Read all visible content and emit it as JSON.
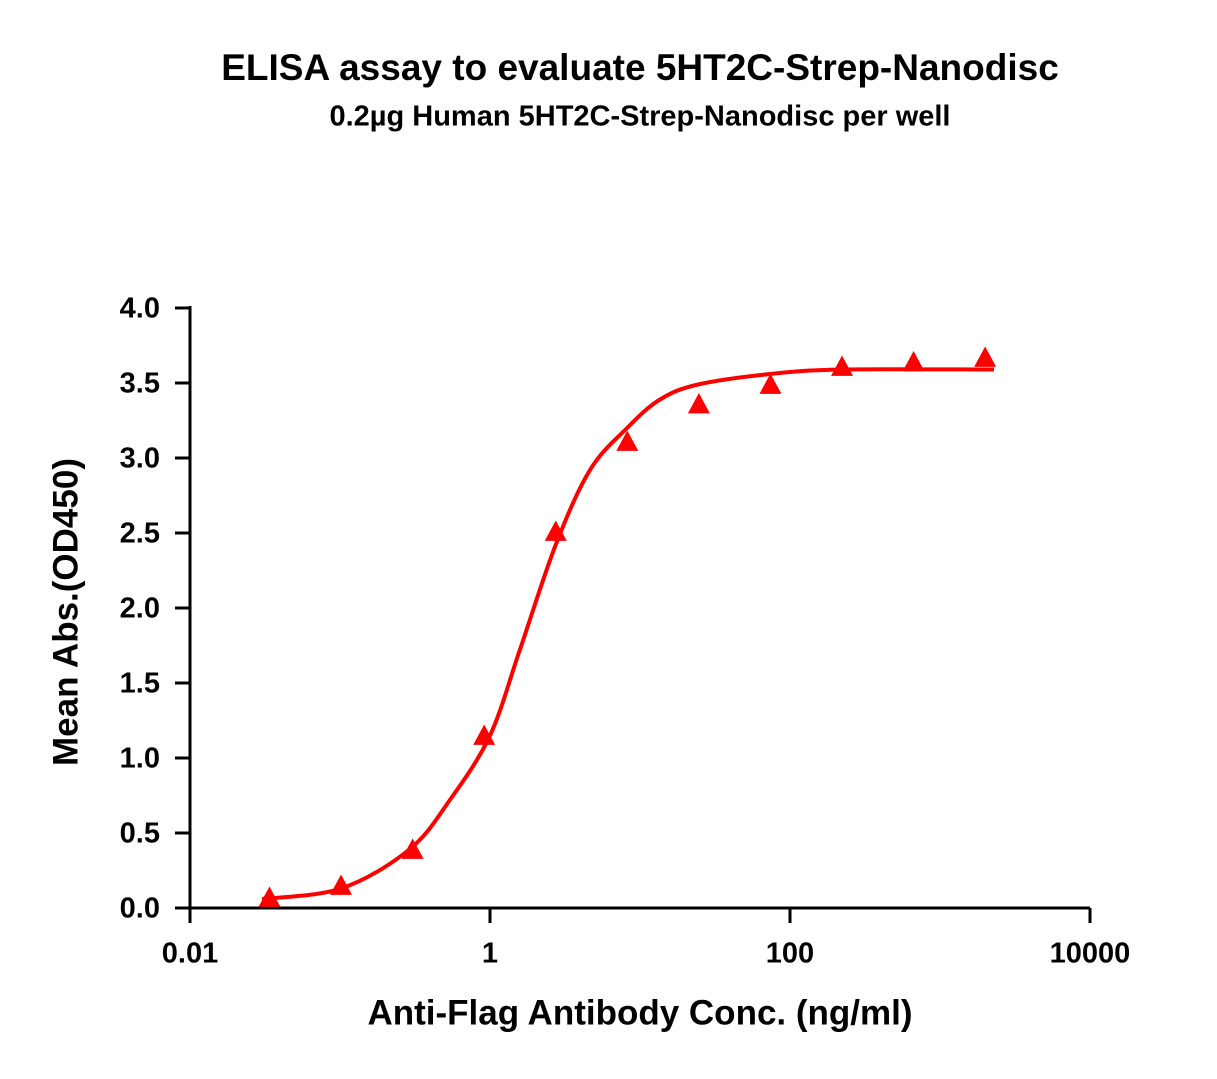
{
  "chart_data": {
    "type": "scatter",
    "title": "ELISA assay to evaluate 5HT2C-Strep-Nanodisc",
    "subtitle": "0.2µg Human 5HT2C-Strep-Nanodisc per well",
    "x_label": "Anti-Flag Antibody Conc. (ng/ml)",
    "y_label": "Mean Abs.(OD450)",
    "xscale": "log",
    "xlim": [
      0.01,
      10000
    ],
    "xticks": [
      0.01,
      1,
      100,
      10000
    ],
    "ylim": [
      0,
      4
    ],
    "yticks": [
      {
        "value": 0,
        "label": "0.0"
      },
      0.5,
      {
        "value": 1,
        "label": "1.0"
      },
      1.5,
      {
        "value": 2,
        "label": "2.0"
      },
      2.5,
      {
        "value": 3,
        "label": "3.0"
      },
      3.5,
      {
        "value": 4,
        "label": "4.0"
      }
    ],
    "grid": false,
    "series": [
      {
        "mode": "markers",
        "marker": "triangle",
        "color": "#ff0000",
        "x": [
          0.03387,
          0.1016,
          0.3048,
          0.9145,
          2.743,
          8.23,
          24.69,
          74.07,
          222.2,
          666.7,
          2000
        ],
        "values": [
          0.07,
          0.15,
          0.39,
          1.15,
          2.51,
          3.11,
          3.36,
          3.49,
          3.61,
          3.64,
          3.67
        ]
      },
      {
        "mode": "line",
        "color": "#ff0000",
        "x": [
          0.0302,
          0.1016,
          0.29,
          0.54,
          1,
          1.58,
          2.74,
          4.64,
          8.2,
          13.6,
          24.4,
          73.6,
          222,
          2290
        ],
        "values": [
          0.06,
          0.13,
          0.39,
          0.72,
          1.15,
          1.72,
          2.42,
          2.92,
          3.2,
          3.39,
          3.49,
          3.56,
          3.59,
          3.59
        ]
      }
    ]
  }
}
